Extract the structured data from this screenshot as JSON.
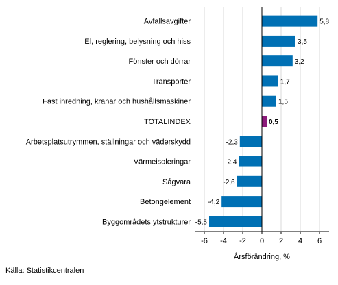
{
  "chart_data": {
    "type": "bar",
    "orientation": "horizontal",
    "categories": [
      "Avfallsavgifter",
      "El, reglering, belysning och hiss",
      "Fönster och dörrar",
      "Transporter",
      "Fast inredning, kranar och hushållsmaskiner",
      "TOTALINDEX",
      "Arbetsplatsutrymmen, ställningar och väderskydd",
      "Värmeisoleringar",
      "Sågvara",
      "Betongelement",
      "Byggområdets ytstrukturer"
    ],
    "values": [
      5.8,
      3.5,
      3.2,
      1.7,
      1.5,
      0.5,
      -2.3,
      -2.4,
      -2.6,
      -4.2,
      -5.5
    ],
    "value_labels": [
      "5,8",
      "3,5",
      "3,2",
      "1,7",
      "1,5",
      "0,5",
      "-2,3",
      "-2,4",
      "-2,6",
      "-4,2",
      "-5,5"
    ],
    "highlight_category": "TOTALINDEX",
    "xlabel": "Årsförändring, %",
    "xlim": [
      -7,
      7
    ],
    "xticks": [
      -6,
      -4,
      -2,
      0,
      2,
      4,
      6
    ],
    "xtick_labels": [
      "-6",
      "-4",
      "-2",
      "0",
      "2",
      "4",
      "6"
    ],
    "grid": true,
    "colors": {
      "bar": "#0070b4",
      "highlight": "#8b1a7a",
      "grid": "#d9d9d9",
      "axis": "#000000"
    }
  },
  "source": "Källa: Statistikcentralen"
}
